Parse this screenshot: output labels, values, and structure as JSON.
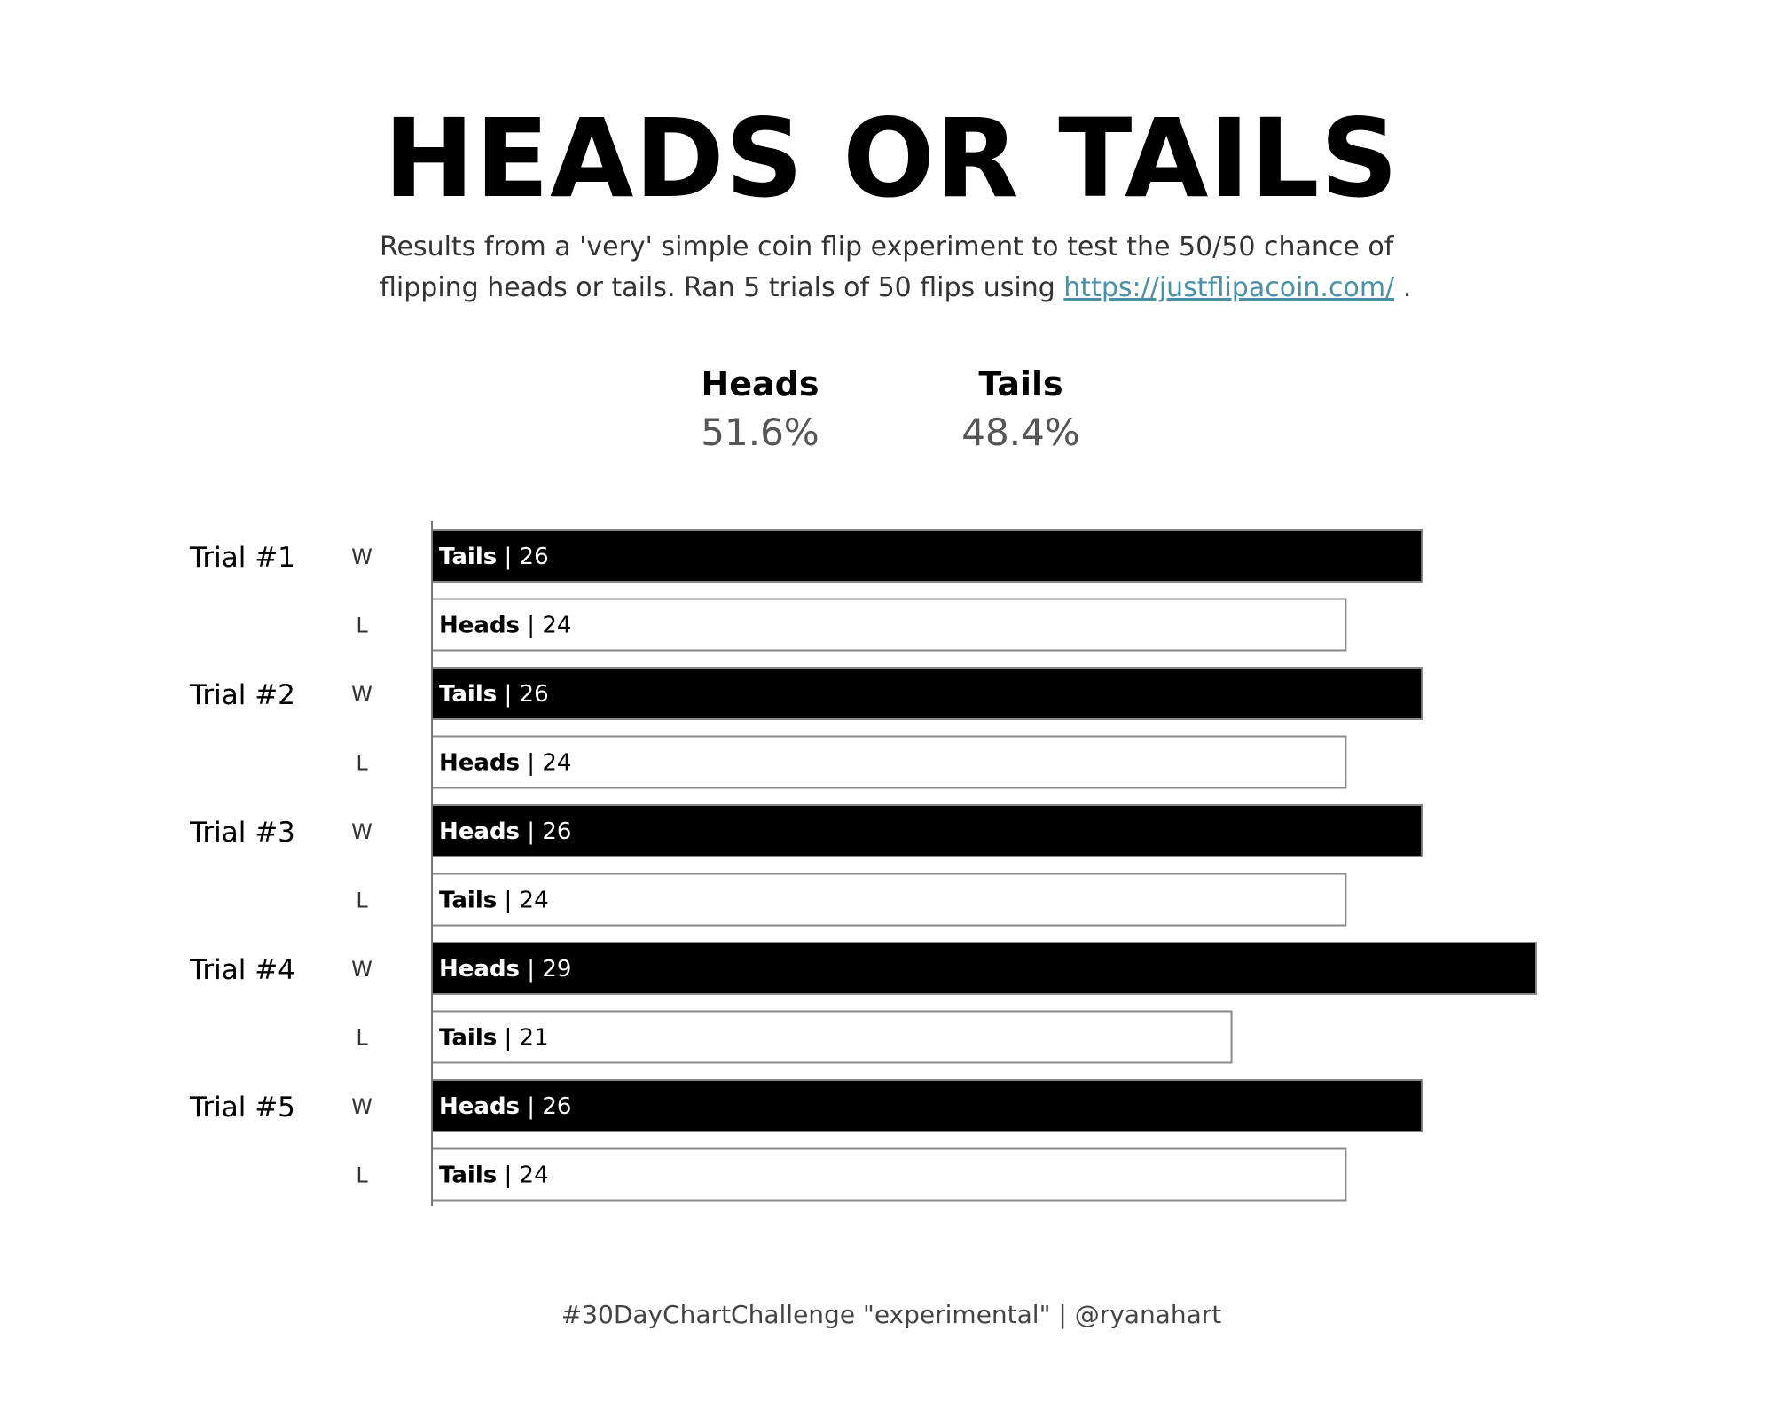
{
  "header": {
    "title": "HEADS OR TAILS",
    "subtitle_text": "Results from a 'very' simple coin flip experiment to test the 50/50 chance of flipping heads or tails.  Ran 5 trials of 50 flips using ",
    "subtitle_link": "https://justflipacoin.com/",
    "subtitle_end": " ."
  },
  "kpis": {
    "heads_label": "Heads",
    "heads_value": "51.6%",
    "tails_label": "Tails",
    "tails_value": "48.4%"
  },
  "chart_data": {
    "type": "bar",
    "orientation": "horizontal",
    "xlim": [
      0,
      29
    ],
    "colors": {
      "win": "#000000",
      "loss": "#ffffff",
      "border": "#888888"
    },
    "trials": [
      {
        "label": "Trial #1",
        "rows": [
          {
            "result": "W",
            "side": "Tails",
            "value": 26
          },
          {
            "result": "L",
            "side": "Heads",
            "value": 24
          }
        ]
      },
      {
        "label": "Trial #2",
        "rows": [
          {
            "result": "W",
            "side": "Tails",
            "value": 26
          },
          {
            "result": "L",
            "side": "Heads",
            "value": 24
          }
        ]
      },
      {
        "label": "Trial #3",
        "rows": [
          {
            "result": "W",
            "side": "Heads",
            "value": 26
          },
          {
            "result": "L",
            "side": "Tails",
            "value": 24
          }
        ]
      },
      {
        "label": "Trial #4",
        "rows": [
          {
            "result": "W",
            "side": "Heads",
            "value": 29
          },
          {
            "result": "L",
            "side": "Tails",
            "value": 21
          }
        ]
      },
      {
        "label": "Trial #5",
        "rows": [
          {
            "result": "W",
            "side": "Heads",
            "value": 26
          },
          {
            "result": "L",
            "side": "Tails",
            "value": 24
          }
        ]
      }
    ]
  },
  "footer": {
    "text": "#30DayChartChallenge \"experimental\" | @ryanahart"
  }
}
